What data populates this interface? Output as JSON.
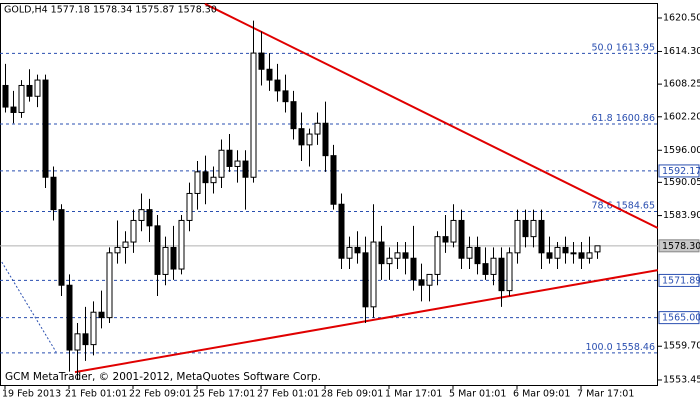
{
  "chart_data": {
    "type": "candlestick",
    "title": "GOLD,H4  1577.18 1578.34 1575.87 1578.30",
    "footer": "GCM MetaTrader, © 2001-2012, MetaQuotes Software Corp.",
    "categories": [
      "19 Feb 2013",
      null,
      null,
      null,
      null,
      null,
      null,
      null,
      "21 Feb 01:01",
      null,
      null,
      null,
      null,
      null,
      null,
      null,
      "22 Feb 09:01",
      null,
      null,
      null,
      null,
      null,
      null,
      null,
      "25 Feb 17:01",
      null,
      null,
      null,
      null,
      null,
      null,
      null,
      "27 Feb 01:01",
      null,
      null,
      null,
      null,
      null,
      null,
      null,
      "28 Feb 09:01",
      null,
      null,
      null,
      null,
      null,
      null,
      null,
      "1 Mar 17:01",
      null,
      null,
      null,
      null,
      null,
      null,
      null,
      "5 Mar 01:01",
      null,
      null,
      null,
      null,
      null,
      null,
      null,
      "6 Mar 09:01",
      null,
      null,
      null,
      null,
      null,
      null,
      null,
      "7 Mar 17:01",
      null,
      null
    ],
    "open": [
      1608,
      1604,
      1603,
      1608,
      1606,
      1609,
      1591,
      1585,
      1571,
      1559,
      1562,
      1560,
      1566,
      1565,
      1577,
      1578,
      1579,
      1583,
      1585,
      1582,
      1573,
      1578,
      1574,
      1583,
      1588,
      1592,
      1590,
      1591,
      1596,
      1593,
      1594,
      1591,
      1614,
      1611,
      1609,
      1607,
      1605,
      1600,
      1597,
      1599,
      1601,
      1595,
      1586,
      1576,
      1578,
      1577,
      1567,
      1579,
      1575,
      1576,
      1577,
      1576,
      1572,
      1571,
      1573,
      1580,
      1579,
      1583,
      1576,
      1578,
      1575,
      1573,
      1576,
      1570,
      1577,
      1583,
      1580,
      1583,
      1577,
      1576,
      1578,
      1577,
      1577,
      1576,
      1577.18
    ],
    "high": [
      1612,
      1607,
      1609,
      1611,
      1610,
      1610,
      1593,
      1586,
      1573,
      1564,
      1567,
      1568,
      1570,
      1578,
      1583,
      1581,
      1585,
      1588,
      1587,
      1584,
      1580,
      1582,
      1584,
      1590,
      1594,
      1595,
      1593,
      1598,
      1599,
      1596,
      1596,
      1620,
      1618,
      1614,
      1612,
      1610,
      1607,
      1603,
      1600,
      1603,
      1605,
      1597,
      1588,
      1580,
      1581,
      1580,
      1586,
      1582,
      1578,
      1579,
      1579,
      1582,
      1575,
      1573,
      1581,
      1584,
      1586,
      1585,
      1580,
      1580,
      1578,
      1578,
      1578,
      1578,
      1585,
      1585,
      1585,
      1585,
      1580,
      1579,
      1580,
      1579,
      1579,
      1580,
      1578.34
    ],
    "low": [
      1603,
      1601,
      1602,
      1605,
      1604,
      1589,
      1583,
      1569,
      1555,
      1553.5,
      1557,
      1558,
      1563,
      1564,
      1575,
      1575,
      1577,
      1581,
      1579,
      1569,
      1571,
      1572,
      1573,
      1581,
      1585,
      1586,
      1588,
      1589,
      1592,
      1590,
      1585,
      1590,
      1608,
      1607,
      1605,
      1603,
      1598,
      1594,
      1593,
      1597,
      1592,
      1585,
      1574,
      1574,
      1575,
      1564,
      1565,
      1572,
      1572,
      1574,
      1573,
      1570,
      1568,
      1568,
      1571,
      1577,
      1578,
      1574,
      1574,
      1573,
      1572,
      1571,
      1567,
      1569,
      1575,
      1578,
      1578,
      1574,
      1575,
      1574,
      1575,
      1575,
      1574,
      1575,
      1575.87
    ],
    "close": [
      1604,
      1603,
      1608,
      1606,
      1609,
      1591,
      1585,
      1571,
      1559,
      1562,
      1560,
      1566,
      1565,
      1577,
      1578,
      1579,
      1583,
      1585,
      1582,
      1573,
      1578,
      1574,
      1583,
      1588,
      1592,
      1590,
      1591,
      1596,
      1593,
      1594,
      1591,
      1614,
      1611,
      1609,
      1607,
      1605,
      1600,
      1597,
      1599,
      1601,
      1595,
      1586,
      1576,
      1578,
      1577,
      1567,
      1579,
      1575,
      1576,
      1577,
      1576,
      1572,
      1571,
      1573,
      1580,
      1579,
      1583,
      1576,
      1578,
      1575,
      1573,
      1576,
      1570,
      1577,
      1583,
      1580,
      1583,
      1577,
      1576,
      1578,
      1577,
      1577,
      1576,
      1577,
      1578.3
    ],
    "ylim": [
      1552.52,
      1623.09
    ],
    "yticks": [
      {
        "value": 1620.5,
        "label": "1620.50"
      },
      {
        "value": 1614.3,
        "label": "1614.30"
      },
      1608.25,
      {
        "value": 1602.2,
        "label": "1602.20"
      },
      {
        "value": 1596,
        "label": "1596.00"
      },
      1590.05,
      {
        "value": 1583.9,
        "label": "1583.90"
      },
      {
        "value": 1559.7,
        "label": "1559.70"
      },
      1553.45
    ],
    "fibonacci": [
      {
        "name": "50.0",
        "value": 1613.95
      },
      {
        "name": "61.8",
        "value": 1600.86
      },
      {
        "name": "78.6",
        "value": 1584.65
      },
      {
        "name": "100.0",
        "value": 1558.46
      }
    ],
    "levels": [
      1592.17,
      1571.89,
      {
        "value": 1565,
        "label": "1565.00"
      }
    ],
    "current_price": {
      "value": 1578.3,
      "label": "1578.30"
    },
    "trendlines": [
      {
        "x": [
          25,
          81.6
        ],
        "y": [
          1623.1,
          1581.6
        ],
        "color": "#e00000"
      },
      {
        "x": [
          8.75,
          81.6
        ],
        "y": [
          1554.9,
          1573.8
        ],
        "color": "#e00000"
      },
      {
        "x": [
          -0.4,
          6.4
        ],
        "y": [
          1575.3,
          1558.6
        ],
        "color": "#2a4fb0",
        "dash": true
      }
    ],
    "bull_color": "#ffffff",
    "bear_color": "#000000",
    "level_color": "#2a4fb0"
  }
}
